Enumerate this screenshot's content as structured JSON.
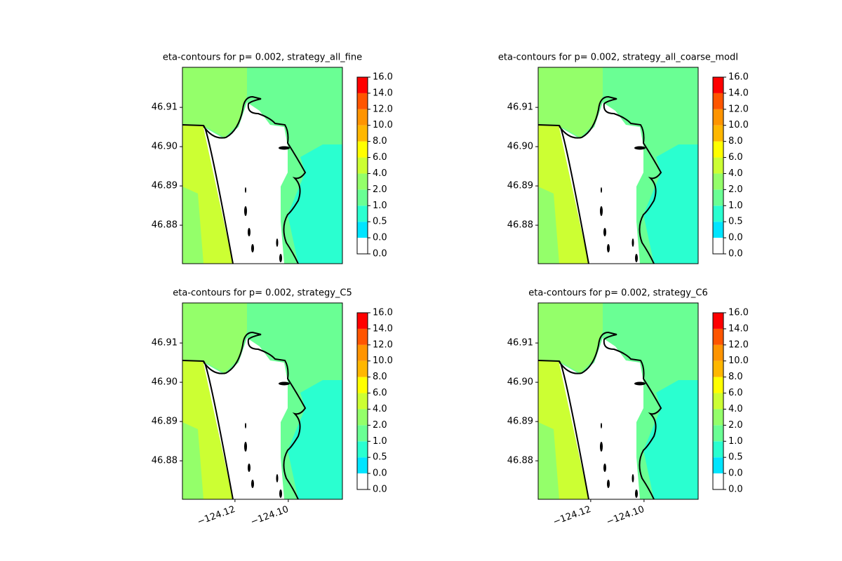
{
  "chart_data": [
    {
      "type": "contour",
      "title": "eta-contours for p= 0.002, strategy_all_fine",
      "xlim": [
        -124.1397,
        -124.0797
      ],
      "ylim": [
        46.8702,
        46.9202
      ],
      "yticks": [
        {
          "value": 46.88,
          "label": "46.88"
        },
        {
          "value": 46.89,
          "label": "46.89"
        },
        {
          "value": 46.9,
          "label": "46.90"
        },
        {
          "value": 46.91,
          "label": "46.91"
        }
      ],
      "levels": [
        {
          "value": 0,
          "label": "0.0"
        },
        {
          "value": 0,
          "label": "0.0"
        },
        {
          "value": 0.5,
          "label": "0.5"
        },
        {
          "value": 1,
          "label": "1.0"
        },
        {
          "value": 2,
          "label": "2.0"
        },
        {
          "value": 4,
          "label": "4.0"
        },
        {
          "value": 6,
          "label": "6.0"
        },
        {
          "value": 8,
          "label": "8.0"
        },
        {
          "value": 10,
          "label": "10.0"
        },
        {
          "value": 12,
          "label": "12.0"
        },
        {
          "value": 14,
          "label": "14.0"
        },
        {
          "value": 16,
          "label": "16.0"
        }
      ],
      "colors": [
        "#ffffff",
        "#00e5ff",
        "#2affd0",
        "#6aff94",
        "#94ff6a",
        "#ccff33",
        "#ffff00",
        "#ffb700",
        "#ff9400",
        "#ff5500",
        "#ff0000"
      ]
    },
    {
      "type": "contour",
      "title": "eta-contours for p= 0.002, strategy_all_coarse_modI",
      "xlim": [
        -124.1397,
        -124.0797
      ],
      "ylim": [
        46.8702,
        46.9202
      ],
      "yticks": [
        {
          "value": 46.88,
          "label": "46.88"
        },
        {
          "value": 46.89,
          "label": "46.89"
        },
        {
          "value": 46.9,
          "label": "46.90"
        },
        {
          "value": 46.91,
          "label": "46.91"
        }
      ],
      "levels": [
        {
          "value": 0,
          "label": "0.0"
        },
        {
          "value": 0,
          "label": "0.0"
        },
        {
          "value": 0.5,
          "label": "0.5"
        },
        {
          "value": 1,
          "label": "1.0"
        },
        {
          "value": 2,
          "label": "2.0"
        },
        {
          "value": 4,
          "label": "4.0"
        },
        {
          "value": 6,
          "label": "6.0"
        },
        {
          "value": 8,
          "label": "8.0"
        },
        {
          "value": 10,
          "label": "10.0"
        },
        {
          "value": 12,
          "label": "12.0"
        },
        {
          "value": 14,
          "label": "14.0"
        },
        {
          "value": 16,
          "label": "16.0"
        }
      ],
      "colors": [
        "#ffffff",
        "#00e5ff",
        "#2affd0",
        "#6aff94",
        "#94ff6a",
        "#ccff33",
        "#ffff00",
        "#ffb700",
        "#ff9400",
        "#ff5500",
        "#ff0000"
      ]
    },
    {
      "type": "contour",
      "title": "eta-contours for p= 0.002, strategy_C5",
      "xlim": [
        -124.1397,
        -124.0797
      ],
      "ylim": [
        46.8702,
        46.9202
      ],
      "xticks": [
        {
          "value": -124.12,
          "label": "−124.12"
        },
        {
          "value": -124.1,
          "label": "−124.10"
        }
      ],
      "yticks": [
        {
          "value": 46.88,
          "label": "46.88"
        },
        {
          "value": 46.89,
          "label": "46.89"
        },
        {
          "value": 46.9,
          "label": "46.90"
        },
        {
          "value": 46.91,
          "label": "46.91"
        }
      ],
      "levels": [
        {
          "value": 0,
          "label": "0.0"
        },
        {
          "value": 0,
          "label": "0.0"
        },
        {
          "value": 0.5,
          "label": "0.5"
        },
        {
          "value": 1,
          "label": "1.0"
        },
        {
          "value": 2,
          "label": "2.0"
        },
        {
          "value": 4,
          "label": "4.0"
        },
        {
          "value": 6,
          "label": "6.0"
        },
        {
          "value": 8,
          "label": "8.0"
        },
        {
          "value": 10,
          "label": "10.0"
        },
        {
          "value": 12,
          "label": "12.0"
        },
        {
          "value": 14,
          "label": "14.0"
        },
        {
          "value": 16,
          "label": "16.0"
        }
      ],
      "colors": [
        "#ffffff",
        "#00e5ff",
        "#2affd0",
        "#6aff94",
        "#94ff6a",
        "#ccff33",
        "#ffff00",
        "#ffb700",
        "#ff9400",
        "#ff5500",
        "#ff0000"
      ]
    },
    {
      "type": "contour",
      "title": "eta-contours for p= 0.002, strategy_C6",
      "xlim": [
        -124.1397,
        -124.0797
      ],
      "ylim": [
        46.8702,
        46.9202
      ],
      "xticks": [
        {
          "value": -124.12,
          "label": "−124.12"
        },
        {
          "value": -124.1,
          "label": "−124.10"
        }
      ],
      "yticks": [
        {
          "value": 46.88,
          "label": "46.88"
        },
        {
          "value": 46.89,
          "label": "46.89"
        },
        {
          "value": 46.9,
          "label": "46.90"
        },
        {
          "value": 46.91,
          "label": "46.91"
        }
      ],
      "levels": [
        {
          "value": 0,
          "label": "0.0"
        },
        {
          "value": 0,
          "label": "0.0"
        },
        {
          "value": 0.5,
          "label": "0.5"
        },
        {
          "value": 1,
          "label": "1.0"
        },
        {
          "value": 2,
          "label": "2.0"
        },
        {
          "value": 4,
          "label": "4.0"
        },
        {
          "value": 6,
          "label": "6.0"
        },
        {
          "value": 8,
          "label": "8.0"
        },
        {
          "value": 10,
          "label": "10.0"
        },
        {
          "value": 12,
          "label": "12.0"
        },
        {
          "value": 14,
          "label": "14.0"
        },
        {
          "value": 16,
          "label": "16.0"
        }
      ],
      "colors": [
        "#ffffff",
        "#00e5ff",
        "#2affd0",
        "#6aff94",
        "#94ff6a",
        "#ccff33",
        "#ffff00",
        "#ffb700",
        "#ff9400",
        "#ff5500",
        "#ff0000"
      ]
    }
  ]
}
